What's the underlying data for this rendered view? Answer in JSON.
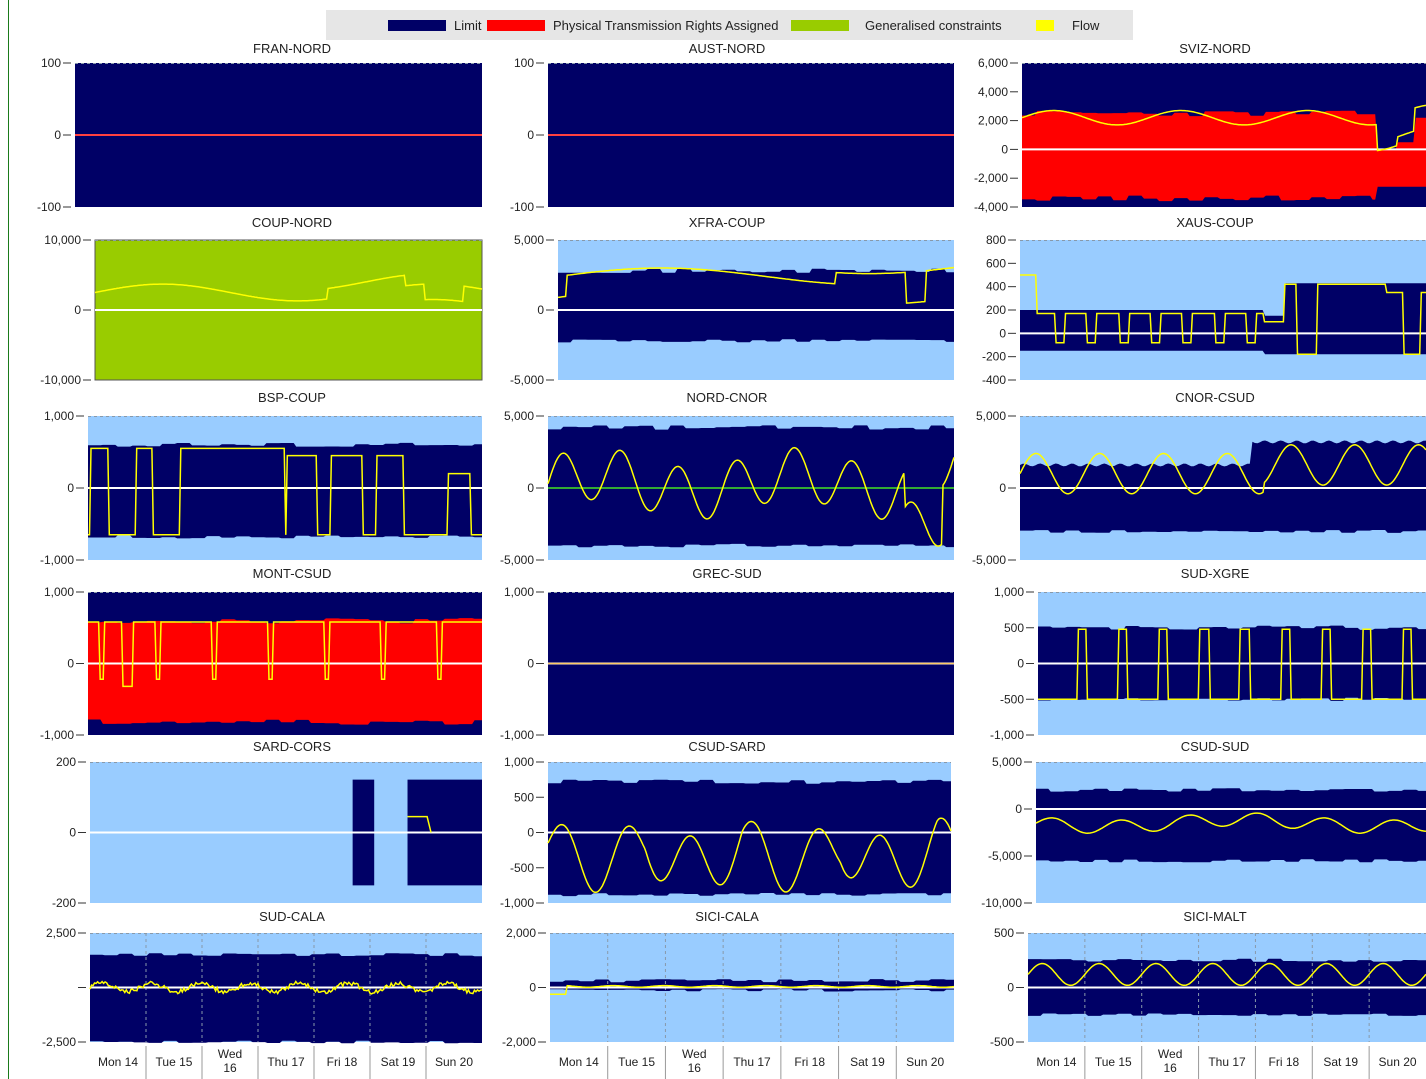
{
  "colors": {
    "limit": "#000066",
    "ptr": "#ff0000",
    "generalised": "#99cc00",
    "flow": "#ffff00",
    "background": "#99ccff",
    "zero_line": "#ffffff"
  },
  "legend": [
    {
      "label": "Limit",
      "color": "#000066"
    },
    {
      "label": "Physical Transmission Rights Assigned",
      "color": "#ff0000"
    },
    {
      "label": "Generalised constraints",
      "color": "#99cc00"
    },
    {
      "label": "Flow",
      "color": "#ffff00"
    }
  ],
  "x_ticks": [
    {
      "l1": "Mon 14",
      "l2": ""
    },
    {
      "l1": "Tue 15",
      "l2": ""
    },
    {
      "l1": "Wed",
      "l2": "16"
    },
    {
      "l1": "Thu 17",
      "l2": ""
    },
    {
      "l1": "Fri 18",
      "l2": ""
    },
    {
      "l1": "Sat 19",
      "l2": ""
    },
    {
      "l1": "Sun 20",
      "l2": ""
    }
  ],
  "chart_data": [
    {
      "type": "area",
      "title": "FRAN-NORD",
      "yticks": [
        "100",
        "0",
        "-100"
      ],
      "ylim": [
        -100,
        100
      ],
      "limit_upper": 100,
      "limit_lower": -100,
      "fill": "limit",
      "ptr": null,
      "flow_profile": "zero",
      "flow_color": "#ff0000"
    },
    {
      "type": "area",
      "title": "AUST-NORD",
      "yticks": [
        "100",
        "0",
        "-100"
      ],
      "ylim": [
        -100,
        100
      ],
      "limit_upper": 100,
      "limit_lower": -100,
      "fill": "limit",
      "ptr": null,
      "flow_profile": "zero",
      "flow_color": "#ff0000"
    },
    {
      "type": "area",
      "title": "SVIZ-NORD",
      "yticks": [
        "6,000",
        "4,000",
        "2,000",
        "0",
        "-2,000",
        "-4,000"
      ],
      "ylim": [
        -4000,
        6000
      ],
      "limit_upper": 6000,
      "limit_lower": -4000,
      "fill": "limit",
      "ptr": {
        "upper": 2500,
        "lower": -3400
      },
      "flow_profile": "sviz"
    },
    {
      "type": "area",
      "title": "COUP-NORD",
      "yticks": [
        "10,000",
        "0",
        "-10,000"
      ],
      "ylim": [
        -10000,
        10000
      ],
      "limit_upper": 10000,
      "limit_lower": -10000,
      "fill": "generalised",
      "ptr": null,
      "flow_profile": "coup"
    },
    {
      "type": "area",
      "title": "XFRA-COUP",
      "yticks": [
        "5,000",
        "0",
        "-5,000"
      ],
      "ylim": [
        -5000,
        5000
      ],
      "limit_upper": 2800,
      "limit_lower": -2200,
      "fill": "background",
      "ptr": null,
      "flow_profile": "xfra"
    },
    {
      "type": "area",
      "title": "XAUS-COUP",
      "yticks": [
        "800",
        "600",
        "400",
        "200",
        "0",
        "-200",
        "-400"
      ],
      "ylim": [
        -400,
        800
      ],
      "limit_upper": 350,
      "limit_lower": -150,
      "fill": "background",
      "ptr": null,
      "flow_profile": "xaus"
    },
    {
      "type": "area",
      "title": "BSP-COUP",
      "yticks": [
        "1,000",
        "0",
        "-1,000"
      ],
      "ylim": [
        -1000,
        1000
      ],
      "limit_upper": 600,
      "limit_lower": -680,
      "fill": "background",
      "ptr": null,
      "flow_profile": "bsp"
    },
    {
      "type": "area",
      "title": "NORD-CNOR",
      "yticks": [
        "5,000",
        "0",
        "-5,000"
      ],
      "ylim": [
        -5000,
        5000
      ],
      "limit_upper": 4200,
      "limit_lower": -4000,
      "fill": "background",
      "ptr": null,
      "flow_profile": "nordcnor",
      "zero_color": "#33aa33"
    },
    {
      "type": "area",
      "title": "CNOR-CSUD",
      "yticks": [
        "5,000",
        "0",
        "-5,000"
      ],
      "ylim": [
        -5000,
        5000
      ],
      "limit_upper": 2500,
      "limit_lower": -3000,
      "fill": "background",
      "ptr": null,
      "flow_profile": "cnor"
    },
    {
      "type": "area",
      "title": "MONT-CSUD",
      "yticks": [
        "1,000",
        "0",
        "-1,000"
      ],
      "ylim": [
        -1000,
        1000
      ],
      "limit_upper": 1000,
      "limit_lower": -1000,
      "fill": "limit",
      "ptr": {
        "upper": 600,
        "lower": -820
      },
      "flow_profile": "mont"
    },
    {
      "type": "area",
      "title": "GREC-SUD",
      "yticks": [
        "1,000",
        "0",
        "-1,000"
      ],
      "ylim": [
        -1000,
        1000
      ],
      "limit_upper": 1000,
      "limit_lower": -1000,
      "fill": "limit",
      "ptr": null,
      "flow_profile": "zero",
      "flow_color": "#ffcc66"
    },
    {
      "type": "area",
      "title": "SUD-XGRE",
      "yticks": [
        "1,000",
        "500",
        "0",
        "-500",
        "-1,000"
      ],
      "ylim": [
        -1000,
        1000
      ],
      "limit_upper": 500,
      "limit_lower": -500,
      "fill": "background",
      "ptr": null,
      "flow_profile": "sudxgre"
    },
    {
      "type": "area",
      "title": "SARD-CORS",
      "yticks": [
        "200",
        "0",
        "-200"
      ],
      "ylim": [
        -200,
        200
      ],
      "limit_upper": 150,
      "limit_lower": -150,
      "fill": "background",
      "ptr": null,
      "flow_profile": "sard"
    },
    {
      "type": "area",
      "title": "CSUD-SARD",
      "yticks": [
        "1,000",
        "500",
        "0",
        "-500",
        "-1,000"
      ],
      "ylim": [
        -1000,
        1000
      ],
      "limit_upper": 720,
      "limit_lower": -880,
      "fill": "background",
      "ptr": null,
      "flow_profile": "csudsard"
    },
    {
      "type": "area",
      "title": "CSUD-SUD",
      "yticks": [
        "5,000",
        "0",
        "-5,000",
        "-10,000"
      ],
      "ylim": [
        -10000,
        5000
      ],
      "limit_upper": 2000,
      "limit_lower": -5500,
      "fill": "background",
      "ptr": null,
      "flow_profile": "csudsud"
    },
    {
      "type": "area",
      "title": "SUD-CALA",
      "yticks": [
        "2,500",
        "",
        "-2,500"
      ],
      "ylim": [
        -2500,
        2500
      ],
      "limit_upper": 1500,
      "limit_lower": -2500,
      "fill": "background",
      "ptr": null,
      "flow_profile": "sudcala"
    },
    {
      "type": "area",
      "title": "SICI-CALA",
      "yticks": [
        "2,000",
        "0",
        "-2,000"
      ],
      "ylim": [
        -2000,
        2000
      ],
      "limit_upper": 250,
      "limit_lower": -100,
      "fill": "background",
      "ptr": null,
      "flow_profile": "sicicala"
    },
    {
      "type": "area",
      "title": "SICI-MALT",
      "yticks": [
        "500",
        "0",
        "-500"
      ],
      "ylim": [
        -500,
        500
      ],
      "limit_upper": 250,
      "limit_lower": -250,
      "fill": "background",
      "ptr": null,
      "flow_profile": "malt"
    }
  ]
}
